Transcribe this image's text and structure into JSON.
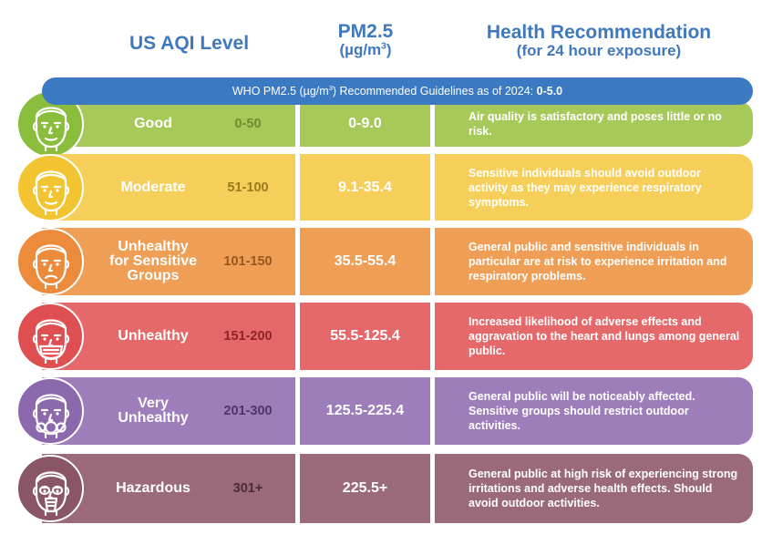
{
  "header": {
    "aqi_level": "US AQI Level",
    "pm_line1": "PM2.5",
    "pm_line2_prefix": "(µg/m",
    "pm_line2_sup": "3",
    "pm_line2_suffix": ")",
    "health_line1": "Health Recommendation",
    "health_line2": "(for 24 hour exposure)"
  },
  "who_banner": {
    "text_prefix": "WHO PM2.5 (µg/m",
    "text_sup": "3",
    "text_suffix": ") Recommended Guidelines as of 2024: ",
    "value": "0-5.0",
    "color": "#3b79c3"
  },
  "rows": [
    {
      "level": "Good",
      "aqi": "0-50",
      "pm": "0-9.0",
      "recommendation": "Air quality is satisfactory and poses little or no risk.",
      "color": "#a6c95a",
      "circle_color": "#8bbd3d",
      "aqi_color": "#6e8f2e",
      "icon": "face-icon"
    },
    {
      "level": "Moderate",
      "aqi": "51-100",
      "pm": "9.1-35.4",
      "recommendation": "Sensitive individuals should avoid outdoor activity as they may experience respiratory symptoms.",
      "color": "#f6cf5a",
      "circle_color": "#f3c431",
      "aqi_color": "#9a7a1a",
      "icon": "face-icon"
    },
    {
      "level": "Unhealthy for Sensitive Groups",
      "aqi": "101-150",
      "pm": "35.5-55.4",
      "recommendation": "General public and sensitive individuals in particular are at risk to experience irritation and respiratory problems.",
      "color": "#ef9e56",
      "circle_color": "#ec8b3c",
      "aqi_color": "#9a5618",
      "icon": "sad-face-icon"
    },
    {
      "level": "Unhealthy",
      "aqi": "151-200",
      "pm": "55.5-125.4",
      "recommendation": "Increased likelihood of adverse effects and aggravation to the heart and lungs among general public.",
      "color": "#e5686a",
      "circle_color": "#df4f51",
      "aqi_color": "#8e2426",
      "icon": "mask-face-icon"
    },
    {
      "level": "Very Unhealthy",
      "aqi": "201-300",
      "pm": "125.5-225.4",
      "recommendation": "General public will be noticeably affected. Sensitive groups should restrict outdoor activities.",
      "color": "#9e7dbb",
      "circle_color": "#8c68ad",
      "aqi_color": "#4e3566",
      "icon": "respirator-face-icon"
    },
    {
      "level": "Hazardous",
      "aqi": "301+",
      "pm": "225.5+",
      "recommendation": "General public at high risk of experiencing strong irritations and adverse health effects. Should avoid outdoor activities.",
      "color": "#9a6a7a",
      "circle_color": "#8a5666",
      "aqi_color": "#4a2a36",
      "icon": "gas-mask-face-icon"
    }
  ]
}
